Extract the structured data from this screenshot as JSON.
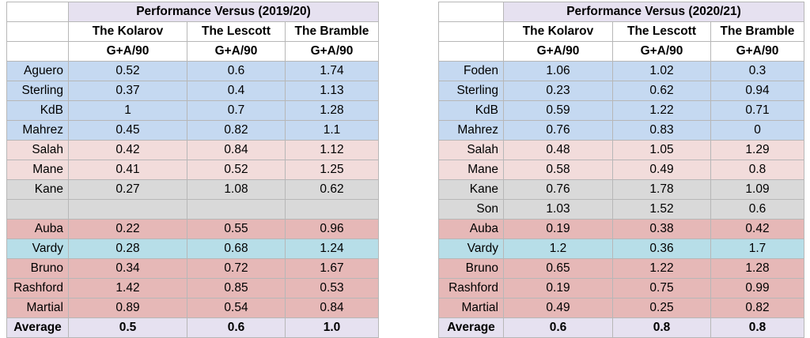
{
  "colors": {
    "header_title": "#e6e1f0",
    "blue": "#c5d9f1",
    "pink": "#f2dcdb",
    "grey": "#d9d9d9",
    "red": "#e6b8b7",
    "teal": "#b7dee8",
    "average": "#e6e1f0"
  },
  "tables": [
    {
      "title": "Performance Versus (2019/20)",
      "columns": [
        "The Kolarov",
        "The Lescott",
        "The Bramble"
      ],
      "metric": [
        "G+A/90",
        "G+A/90",
        "G+A/90"
      ],
      "rows": [
        {
          "name": "Aguero",
          "values": [
            "0.52",
            "0.6",
            "1.74"
          ],
          "group": "blue"
        },
        {
          "name": "Sterling",
          "values": [
            "0.37",
            "0.4",
            "1.13"
          ],
          "group": "blue"
        },
        {
          "name": "KdB",
          "values": [
            "1",
            "0.7",
            "1.28"
          ],
          "group": "blue"
        },
        {
          "name": "Mahrez",
          "values": [
            "0.45",
            "0.82",
            "1.1"
          ],
          "group": "blue"
        },
        {
          "name": "Salah",
          "values": [
            "0.42",
            "0.84",
            "1.12"
          ],
          "group": "pink"
        },
        {
          "name": "Mane",
          "values": [
            "0.41",
            "0.52",
            "1.25"
          ],
          "group": "pink"
        },
        {
          "name": "Kane",
          "values": [
            "0.27",
            "1.08",
            "0.62"
          ],
          "group": "grey"
        },
        {
          "name": "",
          "values": [
            "",
            "",
            ""
          ],
          "group": "grey"
        },
        {
          "name": "Auba",
          "values": [
            "0.22",
            "0.55",
            "0.96"
          ],
          "group": "red"
        },
        {
          "name": "Vardy",
          "values": [
            "0.28",
            "0.68",
            "1.24"
          ],
          "group": "teal"
        },
        {
          "name": "Bruno",
          "values": [
            "0.34",
            "0.72",
            "1.67"
          ],
          "group": "red"
        },
        {
          "name": "Rashford",
          "values": [
            "1.42",
            "0.85",
            "0.53"
          ],
          "group": "red"
        },
        {
          "name": "Martial",
          "values": [
            "0.89",
            "0.54",
            "0.84"
          ],
          "group": "red"
        }
      ],
      "average": {
        "label": "Average",
        "values": [
          "0.5",
          "0.6",
          "1.0"
        ]
      }
    },
    {
      "title": "Performance Versus (2020/21)",
      "columns": [
        "The Kolarov",
        "The Lescott",
        "The Bramble"
      ],
      "metric": [
        "G+A/90",
        "G+A/90",
        "G+A/90"
      ],
      "rows": [
        {
          "name": "Foden",
          "values": [
            "1.06",
            "1.02",
            "0.3"
          ],
          "group": "blue"
        },
        {
          "name": "Sterling",
          "values": [
            "0.23",
            "0.62",
            "0.94"
          ],
          "group": "blue"
        },
        {
          "name": "KdB",
          "values": [
            "0.59",
            "1.22",
            "0.71"
          ],
          "group": "blue"
        },
        {
          "name": "Mahrez",
          "values": [
            "0.76",
            "0.83",
            "0"
          ],
          "group": "blue"
        },
        {
          "name": "Salah",
          "values": [
            "0.48",
            "1.05",
            "1.29"
          ],
          "group": "pink"
        },
        {
          "name": "Mane",
          "values": [
            "0.58",
            "0.49",
            "0.8"
          ],
          "group": "pink"
        },
        {
          "name": "Kane",
          "values": [
            "0.76",
            "1.78",
            "1.09"
          ],
          "group": "grey"
        },
        {
          "name": "Son",
          "values": [
            "1.03",
            "1.52",
            "0.6"
          ],
          "group": "grey"
        },
        {
          "name": "Auba",
          "values": [
            "0.19",
            "0.38",
            "0.42"
          ],
          "group": "red"
        },
        {
          "name": "Vardy",
          "values": [
            "1.2",
            "0.36",
            "1.7"
          ],
          "group": "teal"
        },
        {
          "name": "Bruno",
          "values": [
            "0.65",
            "1.22",
            "1.28"
          ],
          "group": "red"
        },
        {
          "name": "Rashford",
          "values": [
            "0.19",
            "0.75",
            "0.99"
          ],
          "group": "red"
        },
        {
          "name": "Martial",
          "values": [
            "0.49",
            "0.25",
            "0.82"
          ],
          "group": "red"
        }
      ],
      "average": {
        "label": "Average",
        "values": [
          "0.6",
          "0.8",
          "0.8"
        ]
      }
    }
  ]
}
